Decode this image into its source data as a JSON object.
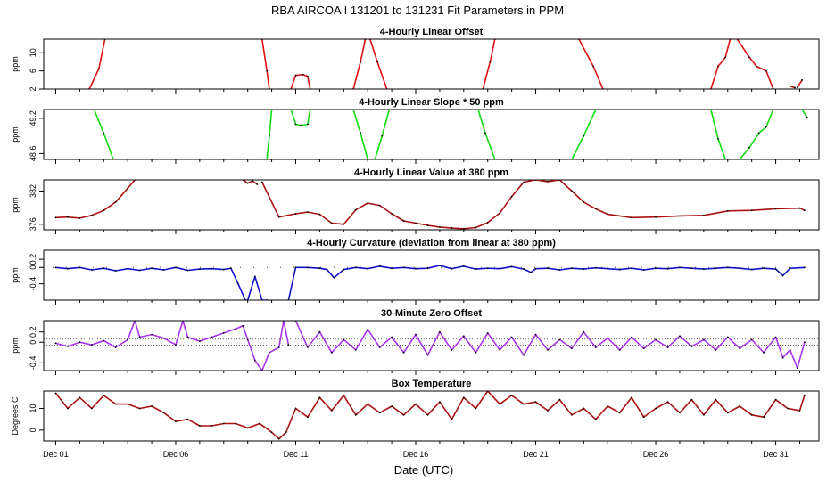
{
  "figure": {
    "title": "RBA   AIRCOA I   131201 to 131231   Fit Parameters in PPM",
    "xlabel": "Date (UTC)",
    "x_ticks": [
      "Dec 01",
      "Dec 06",
      "Dec 11",
      "Dec 16",
      "Dec 21",
      "Dec 26",
      "Dec 31"
    ]
  },
  "chart_data": [
    {
      "type": "line",
      "title": "4-Hourly Linear Offset",
      "ylabel": "ppm",
      "y_ticks": [
        2,
        6,
        10
      ],
      "ylim": [
        2,
        13
      ],
      "x_range_days": [
        0.5,
        32.8
      ],
      "color": "#dd1111",
      "series": [
        {
          "x": [
            2.4,
            2.8,
            3.05
          ],
          "y": [
            2,
            6.5,
            13
          ]
        },
        {
          "x": [
            9.6,
            9.8,
            9.9
          ],
          "y": [
            13,
            6,
            2
          ]
        },
        {
          "x": [
            10.8,
            11.0,
            11.3,
            11.5,
            11.6
          ],
          "y": [
            2,
            5,
            5.2,
            4.8,
            2
          ]
        },
        {
          "x": [
            13.4,
            13.7,
            13.9
          ],
          "y": [
            2,
            8,
            13
          ]
        },
        {
          "x": [
            14.1,
            14.4,
            14.8
          ],
          "y": [
            13,
            8,
            2
          ]
        },
        {
          "x": [
            18.8,
            19.1,
            19.3
          ],
          "y": [
            2,
            8,
            13
          ]
        },
        {
          "x": [
            22.8,
            23.4,
            23.8
          ],
          "y": [
            13,
            7,
            2
          ]
        },
        {
          "x": [
            28.3,
            28.6,
            28.9,
            29.1
          ],
          "y": [
            2,
            7,
            9,
            13
          ]
        },
        {
          "x": [
            29.4,
            29.9,
            30.2,
            30.6,
            30.9
          ],
          "y": [
            13,
            9,
            7,
            6,
            2
          ]
        },
        {
          "x": [
            31.6,
            31.8
          ],
          "y": [
            2.6,
            2.3
          ]
        },
        {
          "x": [
            31.9,
            32.1
          ],
          "y": [
            2.4,
            4.0
          ]
        }
      ]
    },
    {
      "type": "line",
      "title": "4-Hourly Linear Slope * 50 ppm",
      "ylabel": "ppm",
      "y_ticks": [
        48.6,
        49.2
      ],
      "ylim": [
        48.5,
        49.35
      ],
      "x_range_days": [
        0.5,
        32.8
      ],
      "color": "#11dd11",
      "series": [
        {
          "x": [
            2.6,
            3.0,
            3.4
          ],
          "y": [
            49.35,
            48.95,
            48.5
          ]
        },
        {
          "x": [
            9.8,
            9.9,
            10.0
          ],
          "y": [
            48.5,
            48.9,
            49.35
          ]
        },
        {
          "x": [
            10.8,
            11.0,
            11.2,
            11.5,
            11.6
          ],
          "y": [
            49.35,
            49.1,
            49.08,
            49.1,
            49.35
          ]
        },
        {
          "x": [
            13.4,
            13.7,
            14.0
          ],
          "y": [
            49.35,
            48.95,
            48.5
          ]
        },
        {
          "x": [
            14.3,
            14.6,
            14.9
          ],
          "y": [
            48.5,
            48.9,
            49.35
          ]
        },
        {
          "x": [
            18.6,
            18.9,
            19.3
          ],
          "y": [
            49.35,
            48.95,
            48.5
          ]
        },
        {
          "x": [
            22.5,
            23.0,
            23.5
          ],
          "y": [
            48.5,
            48.9,
            49.35
          ]
        },
        {
          "x": [
            28.3,
            28.6,
            28.9
          ],
          "y": [
            49.35,
            48.85,
            48.5
          ]
        },
        {
          "x": [
            29.5,
            29.9,
            30.3,
            30.6,
            30.9
          ],
          "y": [
            48.5,
            48.7,
            48.95,
            49.05,
            49.35
          ]
        },
        {
          "x": [
            32.1,
            32.3
          ],
          "y": [
            49.35,
            49.22
          ]
        }
      ]
    },
    {
      "type": "line",
      "title": "4-Hourly Linear Value at 380 ppm",
      "ylabel": "ppm",
      "y_ticks": [
        376,
        382
      ],
      "ylim": [
        375,
        384
      ],
      "x_range_days": [
        0.5,
        32.8
      ],
      "color": "#aa1111",
      "series": [
        {
          "x": [
            1.0,
            1.5,
            2.0,
            2.5,
            3.0,
            3.5,
            4.0,
            4.3
          ],
          "y": [
            377.2,
            377.3,
            377.1,
            377.6,
            378.5,
            380.0,
            382.5,
            384
          ]
        },
        {
          "x": [
            8.8,
            9.0,
            9.2,
            9.4
          ],
          "y": [
            384,
            383.4,
            383.8,
            383.2
          ]
        },
        {
          "x": [
            9.6,
            10.3,
            11.0,
            11.5,
            12.0,
            12.5,
            13.0,
            13.5,
            14.0,
            14.5,
            15.0,
            15.5,
            16.0,
            16.5,
            17.0,
            17.5,
            18.0,
            18.5,
            19.0,
            19.5,
            20.0,
            20.5,
            21.0,
            21.5,
            22.0,
            22.5,
            23.0,
            23.5,
            24.0,
            25.0,
            26.0,
            27.0,
            28.0,
            29.0,
            30.0,
            31.0,
            32.0,
            32.2
          ],
          "y": [
            383.6,
            377.3,
            377.9,
            378.2,
            377.8,
            376.2,
            376.0,
            378.6,
            379.8,
            379.4,
            377.9,
            376.6,
            376.2,
            375.8,
            375.5,
            375.3,
            375.2,
            375.4,
            376.3,
            378.0,
            381.0,
            383.6,
            384.0,
            383.7,
            384.0,
            382.0,
            380.0,
            378.8,
            377.8,
            377.2,
            377.3,
            377.5,
            377.6,
            378.4,
            378.5,
            378.8,
            378.9,
            378.5
          ]
        }
      ]
    },
    {
      "type": "line",
      "title": "4-Hourly Curvature (deviation from linear at 380 ppm)",
      "ylabel": "ppm",
      "y_ticks": [
        -0.4,
        0,
        0.2
      ],
      "ylim": [
        -0.8,
        0.42
      ],
      "x_range_days": [
        0.5,
        32.8
      ],
      "color": "#1111cc",
      "series": [
        {
          "x": [
            1.0,
            1.5,
            2.0,
            2.5,
            3.0,
            3.5,
            4.0,
            4.5,
            5.0,
            5.5,
            6.0,
            6.5,
            7.0,
            7.5,
            8.0,
            8.3,
            8.6,
            8.9,
            9.0,
            9.3,
            9.6,
            9.8
          ],
          "y": [
            0.0,
            -0.03,
            0.0,
            -0.06,
            -0.02,
            -0.08,
            -0.03,
            -0.07,
            -0.02,
            -0.06,
            0.0,
            -0.07,
            -0.04,
            -0.03,
            -0.05,
            -0.02,
            -0.4,
            -0.8,
            -0.8,
            -0.22,
            -0.8,
            -0.8
          ]
        },
        {
          "x": [
            10.7,
            11.0,
            11.5,
            12.0,
            12.3,
            12.6,
            13.0,
            13.5,
            14.0,
            14.5,
            15.0,
            15.5,
            16.0,
            16.5,
            17.0,
            17.5,
            18.0,
            18.5,
            19.0,
            19.5,
            20.0,
            20.5,
            20.8,
            21.0,
            21.5,
            22.0,
            22.5,
            23.0,
            23.5,
            24.0,
            24.5,
            25.0,
            25.5,
            26.0,
            26.5,
            27.0,
            27.5,
            28.0,
            28.5,
            29.0,
            29.5,
            30.0,
            30.5,
            31.0,
            31.3,
            31.6,
            32.2
          ],
          "y": [
            -0.8,
            0.0,
            0.0,
            -0.02,
            -0.05,
            -0.25,
            -0.05,
            0.0,
            -0.03,
            0.03,
            -0.02,
            0.0,
            -0.03,
            -0.02,
            0.05,
            -0.03,
            0.03,
            -0.04,
            -0.02,
            -0.03,
            0.02,
            -0.04,
            -0.12,
            -0.03,
            -0.02,
            -0.06,
            -0.02,
            -0.04,
            -0.01,
            -0.03,
            -0.05,
            -0.02,
            -0.06,
            -0.02,
            -0.03,
            0.0,
            -0.02,
            -0.04,
            -0.02,
            0.0,
            -0.02,
            -0.05,
            -0.02,
            -0.04,
            -0.2,
            -0.02,
            0.0
          ]
        }
      ]
    },
    {
      "type": "line",
      "title": "30-Minute Zero Offset",
      "ylabel": "ppm",
      "y_ticks": [
        -0.4,
        0,
        0.2
      ],
      "ylim": [
        -0.55,
        0.42
      ],
      "x_range_days": [
        0.5,
        32.8
      ],
      "color": "#aa33ee",
      "reference_lines": [
        0.06,
        -0.06
      ],
      "series": [
        {
          "x": [
            1.0,
            1.5,
            2.0,
            2.5,
            3.0,
            3.5,
            4.0,
            4.3,
            4.5,
            5.0,
            5.5,
            6.0,
            6.3,
            6.5,
            7.0,
            7.5,
            8.0,
            8.5,
            8.8,
            9.0,
            9.3,
            9.6,
            9.9,
            10.3,
            10.5,
            10.7
          ],
          "y": [
            -0.02,
            -0.08,
            0.0,
            -0.05,
            0.03,
            -0.1,
            0.05,
            0.42,
            0.1,
            0.15,
            0.08,
            -0.05,
            0.42,
            0.1,
            0.02,
            0.1,
            0.18,
            0.26,
            0.32,
            0.05,
            -0.35,
            -0.55,
            -0.2,
            -0.1,
            0.42,
            -0.05
          ]
        },
        {
          "x": [
            11.0,
            11.5,
            12.0,
            12.5,
            13.0,
            13.5,
            14.0,
            14.5,
            15.0,
            15.5,
            16.0,
            16.5,
            17.0,
            17.5,
            18.0,
            18.5,
            19.0,
            19.5,
            20.0,
            20.5,
            21.0,
            21.5,
            22.0,
            22.5,
            23.0,
            23.5,
            24.0,
            24.5,
            25.0,
            25.5,
            26.0,
            26.5,
            27.0,
            27.5,
            28.0,
            28.5,
            29.0,
            29.5,
            30.0,
            30.5,
            31.0,
            31.3,
            31.6,
            31.9,
            32.2
          ],
          "y": [
            0.42,
            -0.1,
            0.2,
            -0.2,
            0.05,
            -0.15,
            0.25,
            -0.1,
            0.1,
            -0.2,
            0.15,
            -0.25,
            0.2,
            -0.15,
            0.12,
            -0.2,
            0.18,
            -0.15,
            0.1,
            -0.25,
            0.15,
            -0.15,
            0.05,
            -0.12,
            0.2,
            -0.1,
            0.08,
            -0.15,
            0.1,
            -0.12,
            0.05,
            -0.1,
            0.12,
            -0.08,
            0.05,
            -0.15,
            0.1,
            -0.12,
            0.05,
            -0.2,
            0.1,
            -0.3,
            -0.15,
            -0.5,
            0.0
          ]
        }
      ]
    },
    {
      "type": "line",
      "title": "Box Temperature",
      "ylabel": "Degrees C",
      "y_ticks": [
        0,
        10
      ],
      "ylim": [
        -5,
        18
      ],
      "x_range_days": [
        0.5,
        32.8
      ],
      "color": "#aa1111",
      "series": [
        {
          "x": [
            1.0,
            1.5,
            2.0,
            2.5,
            3.0,
            3.5,
            4.0,
            4.5,
            5.0,
            5.5,
            6.0,
            6.5,
            7.0,
            7.5,
            8.0,
            8.5,
            9.0,
            9.5,
            10.0,
            10.3,
            10.6,
            11.0,
            11.5,
            12.0,
            12.5,
            13.0,
            13.5,
            14.0,
            14.5,
            15.0,
            15.5,
            16.0,
            16.5,
            17.0,
            17.5,
            18.0,
            18.5,
            19.0,
            19.5,
            20.0,
            20.5,
            21.0,
            21.5,
            22.0,
            22.5,
            23.0,
            23.5,
            24.0,
            24.5,
            25.0,
            25.5,
            26.0,
            26.5,
            27.0,
            27.5,
            28.0,
            28.5,
            29.0,
            29.5,
            30.0,
            30.5,
            31.0,
            31.5,
            32.0,
            32.2
          ],
          "y": [
            17,
            10,
            15,
            10,
            16,
            12,
            12,
            10,
            11,
            8,
            4,
            5,
            2,
            2,
            3,
            3,
            1,
            3,
            -1,
            -4,
            -1,
            10,
            6,
            15,
            9,
            16,
            7,
            12,
            8,
            11,
            7,
            12,
            7,
            13,
            5,
            15,
            10,
            18,
            12,
            16,
            12,
            13,
            9,
            14,
            7,
            10,
            5,
            11,
            8,
            15,
            6,
            10,
            13,
            8,
            14,
            7,
            14,
            8,
            11,
            7,
            6,
            14,
            10,
            9,
            16
          ]
        }
      ]
    }
  ]
}
